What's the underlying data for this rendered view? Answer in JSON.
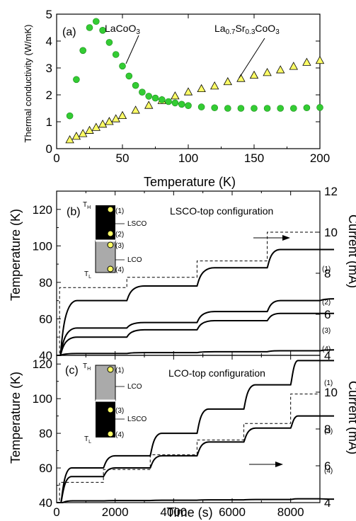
{
  "figure": {
    "panel_a": {
      "label": "(a)",
      "ylabel": "Thermal conductivity (W/mK)",
      "xlabel": "Temperature (K)",
      "annotation_lco": "LaCoO",
      "annotation_lco_sub": "3",
      "annotation_lsco_parts": [
        "La",
        "0.7",
        "Sr",
        "0.3",
        "CoO",
        "3"
      ]
    },
    "panel_b": {
      "label": "(b)",
      "config_title": "LSCO-top configuration",
      "ylabel_left": "Temperature (K)",
      "ylabel_right": "Current (mA)",
      "inset": {
        "TH": "T",
        "TH_sub": "H",
        "TL": "T",
        "TL_sub": "L",
        "top_layer": "LSCO",
        "bottom_layer": "LCO",
        "sensors": [
          "(1)",
          "(2)",
          "(3)",
          "(4)"
        ]
      }
    },
    "panel_c": {
      "label": "(c)",
      "config_title": "LCO-top configuration",
      "ylabel_left": "Temperature (K)",
      "ylabel_right": "Current (mA)",
      "xlabel": "Time (s)",
      "inset": {
        "TH": "T",
        "TH_sub": "H",
        "TL": "T",
        "TL_sub": "L",
        "top_layer": "LCO",
        "bottom_layer": "LSCO",
        "sensors": [
          "(1)",
          "(3)",
          "(4)"
        ]
      }
    }
  },
  "chart_data": [
    {
      "type": "scatter",
      "panel": "a",
      "xlabel": "Temperature (K)",
      "ylabel": "Thermal conductivity (W/mK)",
      "xlim": [
        0,
        200
      ],
      "ylim": [
        0,
        5
      ],
      "xticks": [
        0,
        50,
        100,
        150,
        200
      ],
      "yticks": [
        0,
        1,
        2,
        3,
        4,
        5
      ],
      "series": [
        {
          "name": "LaCoO3",
          "marker": "circle",
          "color": "#33cc33",
          "x": [
            10,
            15,
            20,
            25,
            30,
            35,
            40,
            45,
            50,
            55,
            60,
            65,
            70,
            75,
            80,
            85,
            90,
            95,
            100,
            110,
            120,
            130,
            140,
            150,
            160,
            170,
            180,
            190,
            200
          ],
          "y": [
            1.22,
            2.57,
            3.65,
            4.5,
            4.73,
            4.4,
            3.95,
            3.5,
            3.07,
            2.7,
            2.35,
            2.1,
            1.95,
            1.88,
            1.82,
            1.75,
            1.7,
            1.65,
            1.6,
            1.55,
            1.52,
            1.5,
            1.5,
            1.5,
            1.5,
            1.5,
            1.5,
            1.52,
            1.53
          ]
        },
        {
          "name": "La0.7Sr0.3CoO3",
          "marker": "triangle",
          "color": "#ffff66",
          "x": [
            10,
            15,
            20,
            25,
            30,
            35,
            40,
            45,
            50,
            60,
            70,
            80,
            90,
            100,
            110,
            120,
            130,
            140,
            150,
            160,
            170,
            180,
            190,
            200
          ],
          "y": [
            0.32,
            0.45,
            0.55,
            0.67,
            0.78,
            0.9,
            1.0,
            1.1,
            1.22,
            1.42,
            1.6,
            1.78,
            1.95,
            2.1,
            2.22,
            2.32,
            2.48,
            2.6,
            2.72,
            2.82,
            2.92,
            3.05,
            3.2,
            3.27
          ]
        }
      ]
    },
    {
      "type": "line",
      "panel": "b",
      "xlim": [
        0,
        9000
      ],
      "ylim_left": [
        40,
        130
      ],
      "ylim_right": [
        4,
        12
      ],
      "yticks_left": [
        40,
        60,
        80,
        100,
        120
      ],
      "yticks_right": [
        4,
        6,
        8,
        10,
        12
      ],
      "series": [
        {
          "name": "(1)",
          "style": "solid",
          "axis": "left",
          "steps": [
            [
              0,
              40
            ],
            [
              130,
              70
            ],
            [
              2400,
              78
            ],
            [
              4800,
              88
            ],
            [
              7200,
              98
            ],
            [
              9000,
              98
            ]
          ]
        },
        {
          "name": "(2)",
          "style": "solid",
          "axis": "left",
          "steps": [
            [
              0,
              40
            ],
            [
              130,
              55
            ],
            [
              2400,
              58
            ],
            [
              4800,
              64
            ],
            [
              7200,
              70
            ],
            [
              9000,
              71
            ]
          ]
        },
        {
          "name": "(3)",
          "style": "solid",
          "axis": "left",
          "steps": [
            [
              0,
              40
            ],
            [
              130,
              50
            ],
            [
              2400,
              54
            ],
            [
              4800,
              59
            ],
            [
              7200,
              63
            ],
            [
              9000,
              63
            ]
          ]
        },
        {
          "name": "(4)",
          "style": "solid",
          "axis": "left",
          "steps": [
            [
              0,
              40
            ],
            [
              130,
              41
            ],
            [
              2400,
              41.5
            ],
            [
              4800,
              42
            ],
            [
              7200,
              42.5
            ],
            [
              9000,
              43
            ]
          ]
        },
        {
          "name": "current",
          "style": "dashed",
          "axis": "right",
          "steps": [
            [
              0,
              4
            ],
            [
              100,
              7.3
            ],
            [
              2400,
              7.8
            ],
            [
              4800,
              8.6
            ],
            [
              7200,
              10.0
            ],
            [
              9000,
              10.0
            ]
          ]
        }
      ]
    },
    {
      "type": "line",
      "panel": "c",
      "xlabel": "Time (s)",
      "xlim": [
        0,
        9000
      ],
      "ylim_left": [
        40,
        125
      ],
      "ylim_right": [
        4,
        12
      ],
      "xticks": [
        0,
        2000,
        4000,
        6000,
        8000
      ],
      "yticks_left": [
        40,
        60,
        80,
        100,
        120
      ],
      "yticks_right": [
        4,
        6,
        8,
        10
      ],
      "series": [
        {
          "name": "(1)",
          "style": "solid",
          "axis": "left",
          "steps": [
            [
              0,
              40
            ],
            [
              150,
              60
            ],
            [
              1600,
              67
            ],
            [
              3200,
              80
            ],
            [
              4800,
              94
            ],
            [
              6400,
              108
            ],
            [
              8000,
              122
            ],
            [
              9000,
              122
            ]
          ]
        },
        {
          "name": "(3)",
          "style": "solid",
          "axis": "left",
          "steps": [
            [
              0,
              40
            ],
            [
              150,
              55
            ],
            [
              1600,
              60
            ],
            [
              3200,
              67
            ],
            [
              4800,
              75
            ],
            [
              6400,
              83
            ],
            [
              8000,
              90
            ],
            [
              9000,
              90
            ]
          ]
        },
        {
          "name": "(4)",
          "style": "solid",
          "axis": "left",
          "steps": [
            [
              0,
              40
            ],
            [
              200,
              41
            ],
            [
              1600,
              41.2
            ],
            [
              3200,
              41.4
            ],
            [
              4800,
              41.6
            ],
            [
              6400,
              41.8
            ],
            [
              8000,
              42.2
            ],
            [
              9000,
              42
            ]
          ]
        },
        {
          "name": "current",
          "style": "dashed",
          "axis": "right",
          "steps": [
            [
              0,
              4
            ],
            [
              100,
              5.1
            ],
            [
              1600,
              5.8
            ],
            [
              3200,
              6.6
            ],
            [
              4800,
              7.4
            ],
            [
              6400,
              8.3
            ],
            [
              8000,
              9.9
            ],
            [
              9000,
              9.9
            ]
          ]
        }
      ]
    }
  ]
}
